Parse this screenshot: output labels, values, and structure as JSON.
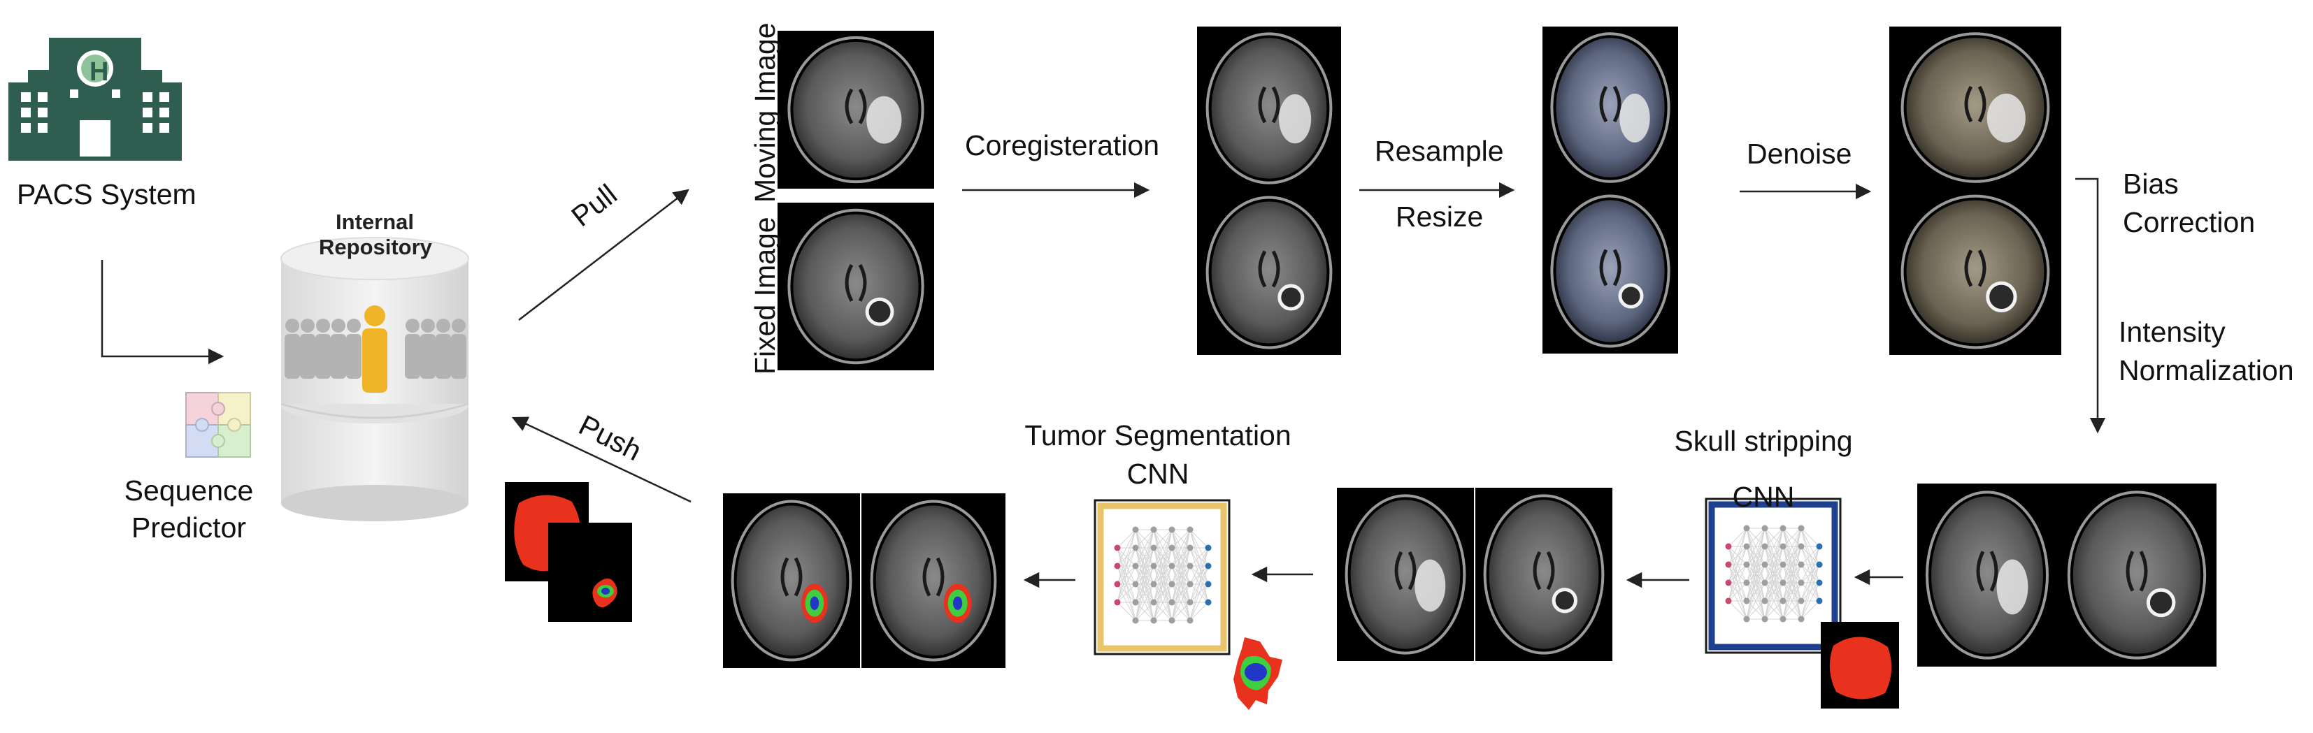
{
  "source": {
    "pacs_label": "PACS System",
    "hospital_letter": "H"
  },
  "repository": {
    "title_line1": "Internal",
    "title_line2": "Repository"
  },
  "sequence_predictor": {
    "line1": "Sequence",
    "line2": "Predictor"
  },
  "edges": {
    "pull": "Pull",
    "push": "Push"
  },
  "input_images": {
    "moving": "Moving Image",
    "fixed": "Fixed Image"
  },
  "steps": {
    "coregistration": "Coregisteration",
    "resample": "Resample",
    "resize": "Resize",
    "denoise": "Denoise",
    "bias_line1": "Bias",
    "bias_line2": "Correction",
    "intensity_line1": "Intensity",
    "intensity_line2": "Normalization",
    "skull_line1": "Skull stripping",
    "skull_line2": "CNN",
    "tumor_line1": "Tumor Segmentation",
    "tumor_line2": "CNN"
  },
  "colors": {
    "hospital": "#2f5d4f",
    "person_highlight": "#f0b429",
    "person_grey": "#b3b3b3",
    "mask_red": "#e8321e",
    "tumor_green": "#3ecf3e",
    "tumor_blue": "#2236c8",
    "tumor_cnn_frame": "#e8c56a",
    "skull_cnn_frame": "#1f3f8f"
  }
}
